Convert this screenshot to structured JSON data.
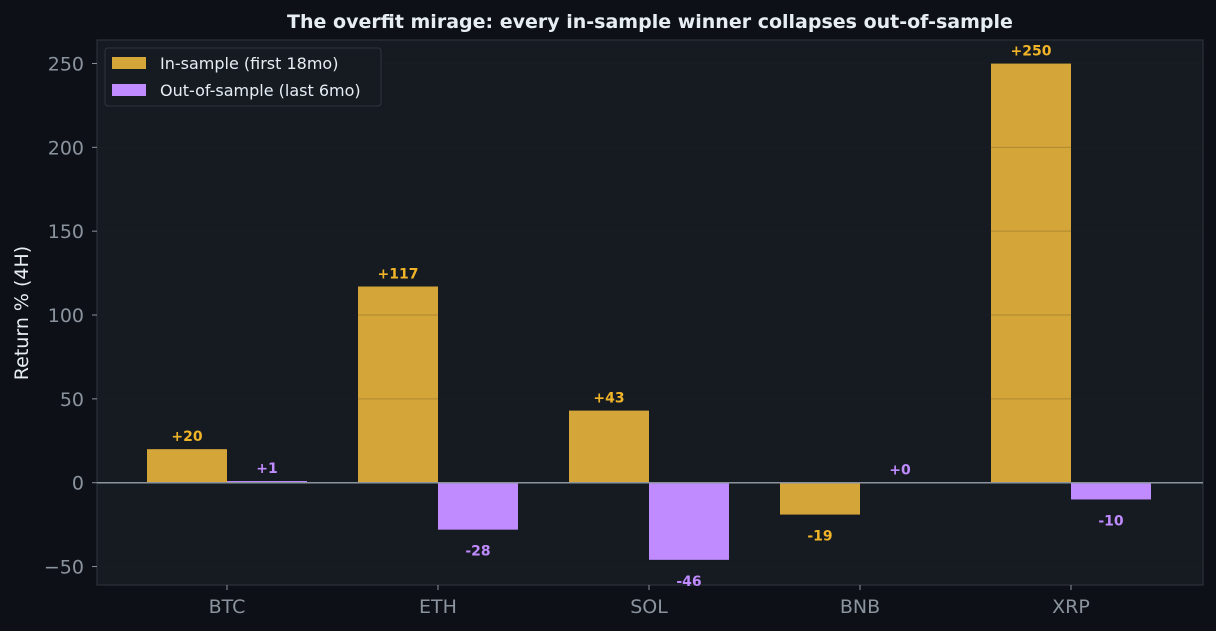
{
  "colors": {
    "background": "#0d1117",
    "plot_background": "#161b22",
    "in_sample": "#d4a63a",
    "out_of_sample": "#bf8bff",
    "in_sample_label": "#f0b429",
    "out_of_sample_label": "#bf8bff",
    "zero_line": "#8b949e",
    "grid": "#30363d"
  },
  "chart_data": {
    "type": "bar",
    "title": "The overfit mirage: every in-sample winner collapses out-of-sample",
    "xlabel": "",
    "ylabel": "Return % (4H)",
    "categories": [
      "BTC",
      "ETH",
      "SOL",
      "BNB",
      "XRP"
    ],
    "series": [
      {
        "name": "In-sample (first 18mo)",
        "values": [
          20,
          117,
          43,
          -19,
          250
        ],
        "labels": [
          "+20",
          "+117",
          "+43",
          "-19",
          "+250"
        ]
      },
      {
        "name": "Out-of-sample (last 6mo)",
        "values": [
          1,
          -28,
          -46,
          0,
          -10
        ],
        "labels": [
          "+1",
          "-28",
          "-46",
          "+0",
          "-10"
        ]
      }
    ],
    "ylim": [
      -61,
      264
    ],
    "yticks": [
      -50,
      0,
      50,
      100,
      150,
      200,
      250
    ],
    "ytick_labels": [
      "−50",
      "0",
      "50",
      "100",
      "150",
      "200",
      "250"
    ],
    "grid": true,
    "legend_position": "top-left"
  }
}
